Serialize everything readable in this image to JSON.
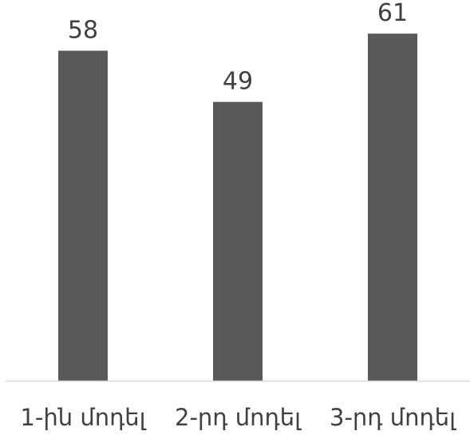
{
  "chart_data": {
    "type": "bar",
    "categories": [
      "1-ին մոդել",
      "2-րդ մոդել",
      "3-րդ մոդել"
    ],
    "values": [
      58,
      49,
      61
    ],
    "ylim": [
      0,
      62
    ],
    "grid": false,
    "data_labels": true,
    "bar_color": "#595959",
    "axis_color": "#d9d9d9",
    "text_color": "#404040"
  }
}
